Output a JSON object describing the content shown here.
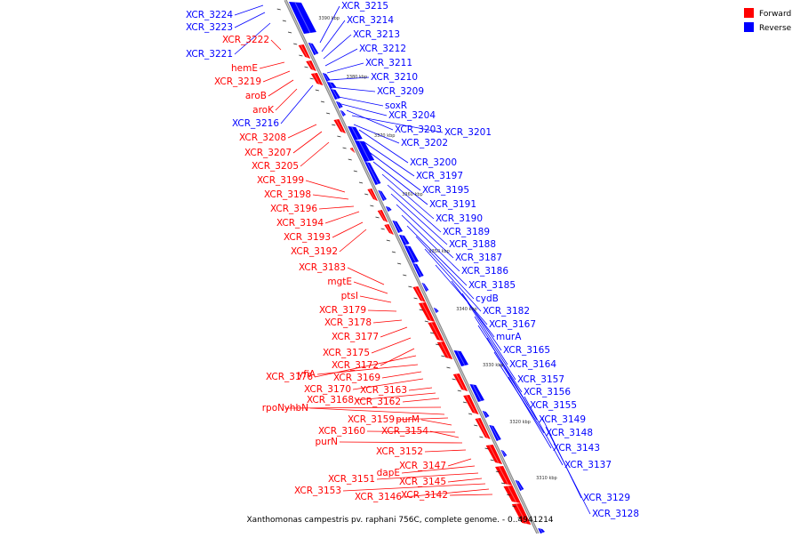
{
  "caption": "Xanthomonas campestris pv. raphani 756C, complete genome. - 0..4941214",
  "legend": [
    {
      "label": "Forward",
      "color": "#ff0000"
    },
    {
      "label": "Reverse",
      "color": "#0000ff"
    }
  ],
  "colors": {
    "forward": "#ff0000",
    "reverse": "#0000ff",
    "backbone": "#999999"
  },
  "ticks": [
    "3390 kbp",
    "3380 kbp",
    "3370 kbp",
    "3360 kbp",
    "3350 kbp",
    "3340 kbp",
    "3330 kbp",
    "3320 kbp",
    "3310 kbp"
  ],
  "reverse_labels": [
    "XCR_3215",
    "XCR_3214",
    "XCR_3213",
    "XCR_3212",
    "XCR_3211",
    "XCR_3210",
    "XCR_3209",
    "soxR",
    "XCR_3204",
    "XCR_3203",
    "XCR_3201",
    "XCR_3202",
    "XCR_3200",
    "XCR_3197",
    "XCR_3195",
    "XCR_3191",
    "XCR_3190",
    "XCR_3189",
    "XCR_3188",
    "XCR_3187",
    "XCR_3186",
    "XCR_3185",
    "cydB",
    "XCR_3182",
    "XCR_3167",
    "murA",
    "XCR_3165",
    "XCR_3164",
    "XCR_3157",
    "XCR_3156",
    "XCR_3155",
    "XCR_3149",
    "XCR_3148",
    "XCR_3143",
    "XCR_3137",
    "XCR_3129",
    "XCR_3128"
  ],
  "reverse_left_labels": [
    "XCR_3224",
    "XCR_3223",
    "XCR_3221",
    "XCR_3216"
  ],
  "forward_labels": [
    "XCR_3222",
    "hemE",
    "XCR_3219",
    "aroB",
    "aroK",
    "XCR_3208",
    "XCR_3207",
    "XCR_3205",
    "XCR_3199",
    "XCR_3198",
    "XCR_3196",
    "XCR_3194",
    "XCR_3193",
    "XCR_3192",
    "XCR_3183",
    "mgtE",
    "ptsI",
    "XCR_3179",
    "XCR_3178",
    "XCR_3177",
    "XCR_3175",
    "XCR_3172",
    "XCR_3176",
    "yfiA",
    "XCR_3169",
    "XCR_3170",
    "XCR_3163",
    "XCR_3168",
    "XCR_3162",
    "rpoN",
    "yhbN",
    "XCR_3159",
    "purM",
    "XCR_3160",
    "XCR_3154",
    "purN",
    "XCR_3152",
    "XCR_3147",
    "dapE",
    "XCR_3151",
    "XCR_3145",
    "XCR_3153",
    "XCR_3146",
    "XCR_3142"
  ]
}
